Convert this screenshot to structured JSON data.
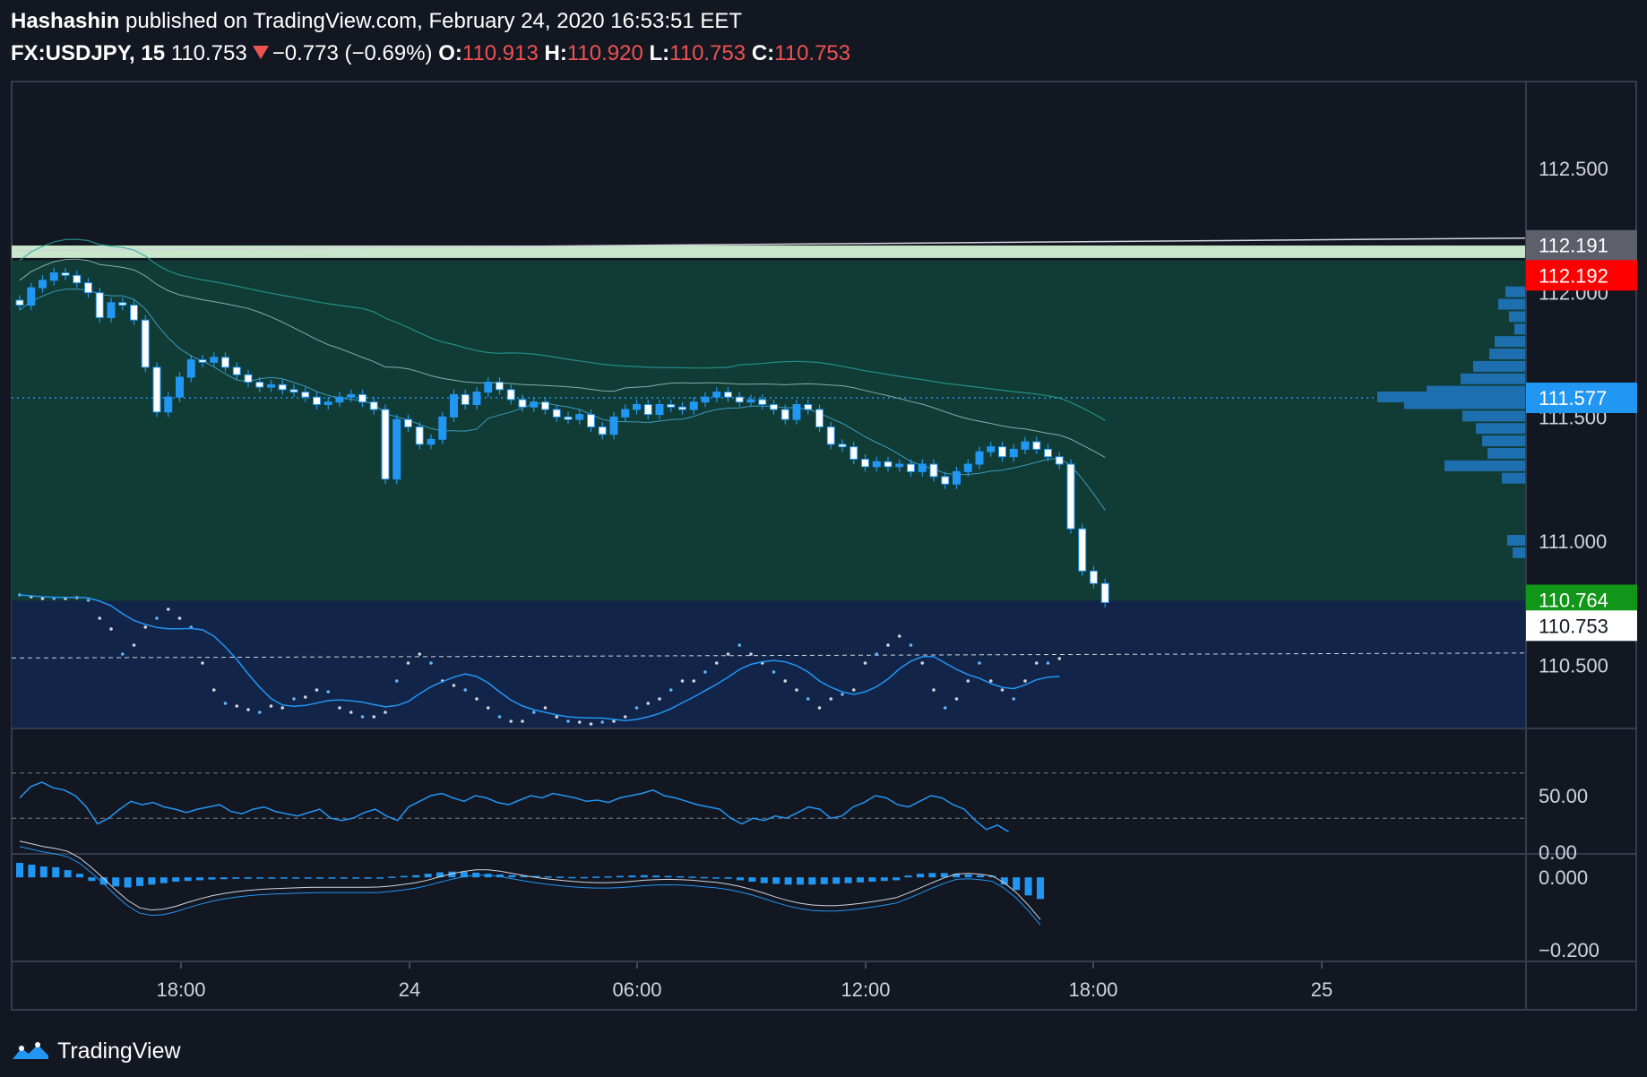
{
  "header": {
    "author": "Hashashin",
    "published_text": "published on TradingView.com, February 24, 2020 16:53:51 EET",
    "symbol": "FX:USDJPY, 15",
    "last": "110.753",
    "change": "−0.773 (−0.69%)",
    "o_label": "O:",
    "o_value": "110.913",
    "h_label": "H:",
    "h_value": "110.920",
    "l_label": "L:",
    "l_value": "110.753",
    "c_label": "C:",
    "c_value": "110.753"
  },
  "footer": {
    "brand": "TradingView"
  },
  "colors": {
    "background": "#131722",
    "zone_green": "#113b35",
    "zone_blue": "#132449",
    "candle_up": "#2196f3",
    "candle_down": "#ffffff",
    "grid": "#363c4e",
    "red_label": "#ff0000",
    "green_label": "#109618",
    "gray_label": "#5d606b",
    "blue_label": "#2196f3"
  },
  "chart_data": [
    {
      "type": "candlestick",
      "symbol": "FX:USDJPY",
      "interval": "15",
      "x_tick_labels": [
        "18:00",
        "24",
        "06:00",
        "12:00",
        "18:00",
        "25"
      ],
      "y_tick_labels": [
        "112.500",
        "112.000",
        "111.500",
        "111.000",
        "110.500"
      ],
      "ylim": [
        110.25,
        112.85
      ],
      "price_labels": [
        {
          "value": "112.191",
          "y": 112.191,
          "bg": "#5d606b",
          "fg": "#ffffff"
        },
        {
          "value": "112.192",
          "y": 112.07,
          "bg": "#ff0000",
          "fg": "#ffffff"
        },
        {
          "value": "111.577",
          "y": 111.577,
          "bg": "#2196f3",
          "fg": "#ffffff"
        },
        {
          "value": "110.764",
          "y": 110.764,
          "bg": "#109618",
          "fg": "#ffffff"
        },
        {
          "value": "110.753",
          "y": 110.66,
          "bg": "#ffffff",
          "fg": "#131722"
        }
      ],
      "zones": [
        {
          "from": 112.14,
          "to": 112.19,
          "color": "#c8e6c9"
        },
        {
          "from": 110.76,
          "to": 112.13,
          "color": "#113b35"
        },
        {
          "from": 110.25,
          "to": 110.76,
          "color": "#132449"
        }
      ],
      "close_series": [
        111.95,
        112.02,
        112.05,
        112.08,
        112.07,
        112.04,
        112.0,
        111.9,
        111.96,
        111.95,
        111.89,
        111.7,
        111.52,
        111.58,
        111.66,
        111.73,
        111.72,
        111.74,
        111.7,
        111.67,
        111.64,
        111.62,
        111.63,
        111.61,
        111.6,
        111.58,
        111.55,
        111.56,
        111.58,
        111.59,
        111.56,
        111.53,
        111.25,
        111.49,
        111.46,
        111.39,
        111.41,
        111.5,
        111.59,
        111.55,
        111.6,
        111.64,
        111.61,
        111.57,
        111.54,
        111.56,
        111.53,
        111.5,
        111.49,
        111.51,
        111.46,
        111.43,
        111.5,
        111.53,
        111.55,
        111.51,
        111.55,
        111.54,
        111.53,
        111.56,
        111.58,
        111.6,
        111.58,
        111.56,
        111.57,
        111.55,
        111.53,
        111.49,
        111.55,
        111.53,
        111.46,
        111.39,
        111.38,
        111.33,
        111.3,
        111.32,
        111.3,
        111.31,
        111.28,
        111.31,
        111.26,
        111.23,
        111.28,
        111.31,
        111.36,
        111.38,
        111.34,
        111.37,
        111.4,
        111.37,
        111.34,
        111.31,
        111.05,
        110.88,
        110.83,
        110.753
      ]
    },
    {
      "type": "line",
      "name": "oscillator",
      "y_tick_labels": [
        "50.00",
        "0.00"
      ],
      "ylim": [
        0,
        100
      ],
      "levels": [
        70,
        30
      ],
      "values": [
        48,
        58,
        62,
        57,
        55,
        50,
        40,
        25,
        30,
        38,
        45,
        42,
        44,
        40,
        38,
        35,
        38,
        40,
        42,
        36,
        34,
        38,
        40,
        36,
        34,
        32,
        35,
        38,
        30,
        28,
        30,
        35,
        38,
        32,
        28,
        40,
        45,
        50,
        52,
        48,
        45,
        50,
        48,
        44,
        42,
        46,
        50,
        48,
        52,
        50,
        48,
        45,
        46,
        44,
        48,
        50,
        52,
        55,
        50,
        48,
        45,
        42,
        40,
        38,
        30,
        25,
        30,
        28,
        32,
        30,
        35,
        40,
        38,
        30,
        32,
        40,
        44,
        50,
        48,
        42,
        40,
        45,
        50,
        48,
        42,
        38,
        28,
        20,
        24,
        18
      ]
    },
    {
      "type": "bar",
      "name": "histogram",
      "y_tick_labels": [
        "0.000",
        "−0.200"
      ],
      "ylim": [
        -0.23,
        0.05
      ],
      "values": [
        0.04,
        0.035,
        0.03,
        0.028,
        0.02,
        0.01,
        -0.01,
        -0.02,
        -0.025,
        -0.028,
        -0.024,
        -0.02,
        -0.016,
        -0.012,
        -0.01,
        -0.008,
        -0.006,
        -0.005,
        -0.004,
        -0.004,
        -0.003,
        -0.003,
        -0.003,
        -0.002,
        -0.002,
        -0.002,
        -0.003,
        -0.003,
        -0.002,
        -0.002,
        -0.001,
        0.002,
        0.004,
        0.006,
        0.01,
        0.014,
        0.016,
        0.015,
        0.013,
        0.01,
        0.008,
        0.006,
        0.005,
        0.004,
        0.003,
        0.002,
        0.001,
        0.001,
        0.002,
        0.003,
        0.004,
        0.005,
        0.006,
        0.005,
        0.004,
        0.003,
        0.002,
        0.001,
        0.0,
        -0.004,
        -0.008,
        -0.012,
        -0.016,
        -0.018,
        -0.02,
        -0.02,
        -0.02,
        -0.019,
        -0.018,
        -0.016,
        -0.014,
        -0.012,
        -0.01,
        -0.008,
        0.005,
        0.01,
        0.012,
        0.012,
        0.01,
        0.008,
        0.006,
        0.004,
        -0.02,
        -0.035,
        -0.05,
        -0.06
      ]
    }
  ]
}
